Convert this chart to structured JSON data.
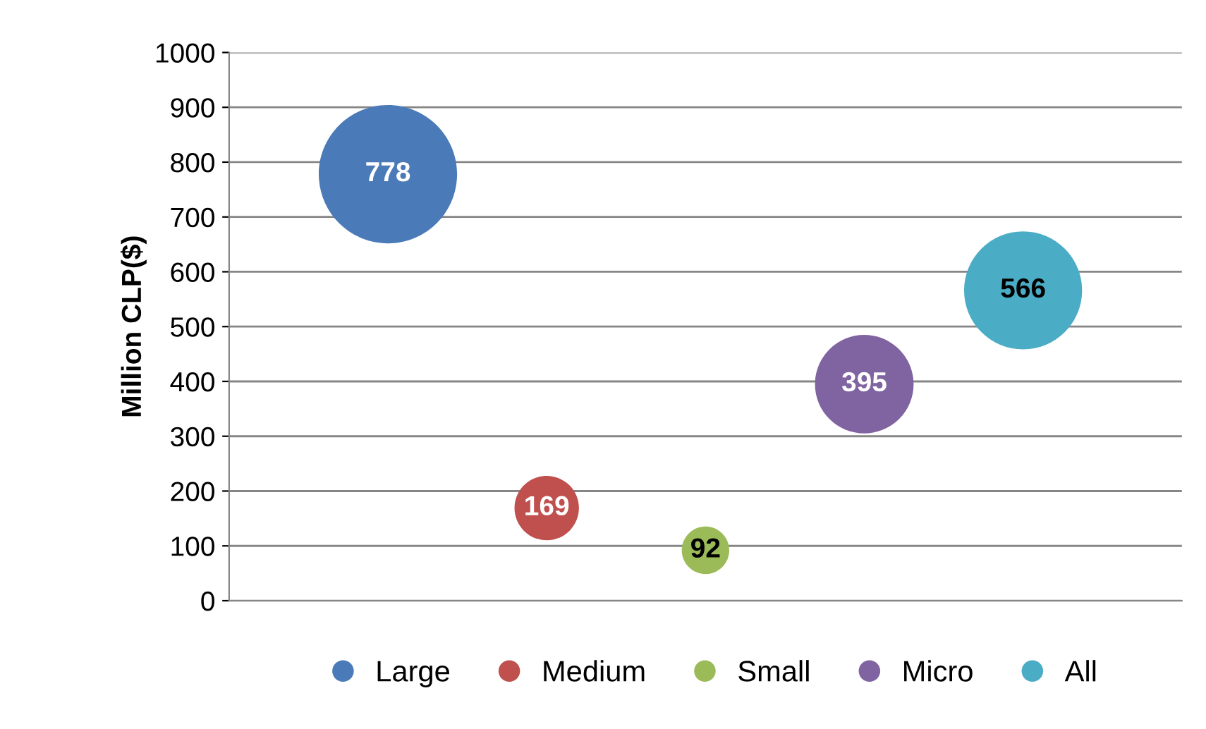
{
  "chart_data": {
    "type": "bubble",
    "ylabel": "Million CLP($)",
    "categories": [
      null,
      null,
      null,
      null,
      null
    ],
    "series": [
      {
        "name": "Large",
        "color": "#4a7ab8",
        "values": [
          778,
          null,
          null,
          null,
          null
        ],
        "sizes": [
          1,
          null,
          null,
          null,
          null
        ]
      },
      {
        "name": "Medium",
        "color": "#c0504d",
        "values": [
          null,
          169,
          null,
          null,
          null
        ],
        "sizes": [
          null,
          0.217,
          null,
          null,
          null
        ]
      },
      {
        "name": "Small",
        "color": "#9bbb59",
        "values": [
          null,
          null,
          92,
          null,
          null
        ],
        "sizes": [
          null,
          null,
          0.118,
          null,
          null
        ]
      },
      {
        "name": "Micro",
        "color": "#8064a2",
        "values": [
          null,
          null,
          null,
          395,
          null
        ],
        "sizes": [
          null,
          null,
          null,
          0.508,
          null
        ]
      },
      {
        "name": "All",
        "color": "#4bacc6",
        "values": [
          null,
          null,
          null,
          null,
          566
        ],
        "sizes": [
          null,
          null,
          null,
          null,
          0.728
        ]
      }
    ],
    "ylim": [
      0,
      1000
    ],
    "yticks": [
      0,
      100,
      200,
      300,
      400,
      500,
      600,
      700,
      800,
      900,
      1000
    ],
    "grid": "y",
    "legend": "bottom",
    "data_labels": true
  }
}
